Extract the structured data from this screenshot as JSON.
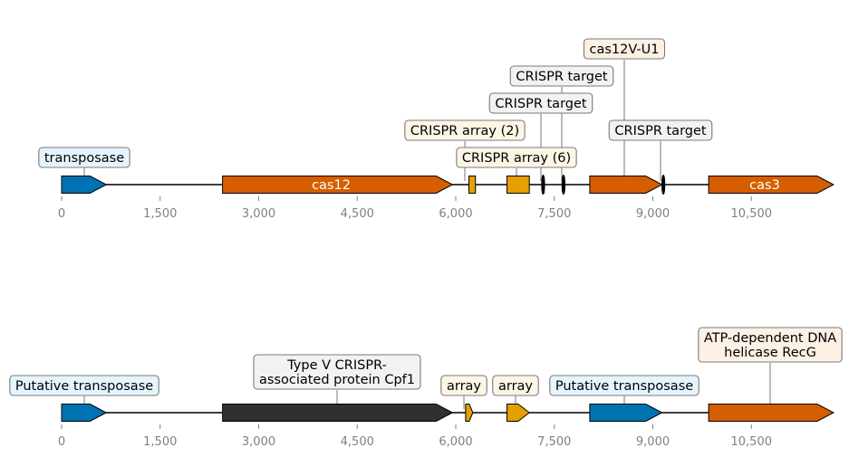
{
  "tracks": [
    {
      "id": "top",
      "axis_max": 11750,
      "ticks": [
        0,
        1500,
        3000,
        4500,
        6000,
        7500,
        9000,
        10500
      ],
      "tick_labels": [
        "0",
        "1,500",
        "3,000",
        "4,500",
        "6,000",
        "7,500",
        "9,000",
        "10,500"
      ],
      "features": [
        {
          "start": 0,
          "end": 680,
          "color": "#0072b2",
          "shape": "arrow",
          "label": "transposase",
          "label_style": "box",
          "box_color": "#e5f4fd"
        },
        {
          "start": 2450,
          "end": 5950,
          "color": "#d55e00",
          "shape": "arrow",
          "label": "cas12",
          "label_style": "inside"
        },
        {
          "start": 6200,
          "end": 6300,
          "color": "#e69f00",
          "shape": "rect",
          "label": "CRISPR array (2)",
          "label_style": "box",
          "box_color": "#fdf5e5"
        },
        {
          "start": 6780,
          "end": 7120,
          "color": "#e69f00",
          "shape": "rect",
          "label": "CRISPR array (6)",
          "label_style": "box",
          "box_color": "#fdf5e5"
        },
        {
          "start": 7310,
          "end": 7350,
          "color": "#000000",
          "shape": "ellipse",
          "label": "CRISPR target",
          "label_style": "box",
          "box_color": "#f2f2f2"
        },
        {
          "start": 7620,
          "end": 7660,
          "color": "#000000",
          "shape": "ellipse",
          "label": "CRISPR target",
          "label_style": "box",
          "box_color": "#f2f2f2"
        },
        {
          "start": 8040,
          "end": 9140,
          "color": "#d55e00",
          "shape": "arrow",
          "label": "cas12V-U1",
          "label_style": "box",
          "box_color": "#fdf0e5"
        },
        {
          "start": 9140,
          "end": 9180,
          "color": "#000000",
          "shape": "ellipse",
          "label": "CRISPR target",
          "label_style": "box",
          "box_color": "#f2f2f2"
        },
        {
          "start": 9850,
          "end": 11750,
          "color": "#d55e00",
          "shape": "arrow",
          "label": "cas3",
          "label_style": "inside"
        }
      ]
    },
    {
      "id": "bottom",
      "axis_max": 11750,
      "ticks": [
        0,
        1500,
        3000,
        4500,
        6000,
        7500,
        9000,
        10500
      ],
      "tick_labels": [
        "0",
        "1,500",
        "3,000",
        "4,500",
        "6,000",
        "7,500",
        "9,000",
        "10,500"
      ],
      "features": [
        {
          "start": 0,
          "end": 680,
          "color": "#0072b2",
          "shape": "arrow",
          "label": "Putative transposase",
          "label_style": "box",
          "box_color": "#e5f4fd"
        },
        {
          "start": 2450,
          "end": 5950,
          "color": "#303030",
          "shape": "arrow",
          "label": "Type V CRISPR-\nassociated protein Cpf1",
          "label_style": "box",
          "box_color": "#f2f2f2"
        },
        {
          "start": 6150,
          "end": 6260,
          "color": "#e69f00",
          "shape": "arrow",
          "label": "array",
          "label_style": "box",
          "box_color": "#fdf5e5"
        },
        {
          "start": 6780,
          "end": 7120,
          "color": "#e69f00",
          "shape": "arrow",
          "label": "array",
          "label_style": "box",
          "box_color": "#fdf5e5"
        },
        {
          "start": 8040,
          "end": 9140,
          "color": "#0072b2",
          "shape": "arrow",
          "label": "Putative transposase",
          "label_style": "box",
          "box_color": "#e5f4fd"
        },
        {
          "start": 9850,
          "end": 11750,
          "color": "#d55e00",
          "shape": "arrow",
          "label": "ATP-dependent DNA\nhelicase RecG",
          "label_style": "box",
          "box_color": "#fdf0e5"
        }
      ]
    }
  ]
}
